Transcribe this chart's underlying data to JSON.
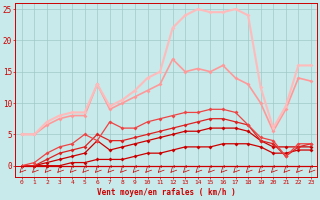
{
  "background_color": "#c8eaea",
  "grid_color": "#a0c8c8",
  "xlabel": "Vent moyen/en rafales ( km/h )",
  "xlabel_color": "#cc0000",
  "tick_color": "#cc0000",
  "yticks": [
    0,
    5,
    10,
    15,
    20,
    25
  ],
  "xticks": [
    0,
    1,
    2,
    3,
    4,
    5,
    6,
    7,
    8,
    9,
    10,
    11,
    12,
    13,
    14,
    15,
    16,
    17,
    18,
    19,
    20,
    21,
    22,
    23
  ],
  "lines": [
    {
      "y": [
        0,
        0,
        0,
        0,
        0,
        0,
        0,
        0,
        0,
        0,
        0,
        0,
        0,
        0,
        0,
        0,
        0,
        0,
        0,
        0,
        0,
        0,
        0,
        0
      ],
      "color": "#cc0000",
      "lw": 0.9
    },
    {
      "y": [
        0,
        0,
        0,
        0,
        0.5,
        0.5,
        1,
        1,
        1,
        1.5,
        2,
        2,
        2.5,
        3,
        3,
        3,
        3.5,
        3.5,
        3.5,
        3,
        2,
        2,
        2.5,
        2.5
      ],
      "color": "#cc0000",
      "lw": 0.9
    },
    {
      "y": [
        0,
        0,
        0.5,
        1,
        1.5,
        2,
        4,
        2.5,
        3,
        3.5,
        4,
        4.5,
        5,
        5.5,
        5.5,
        6,
        6,
        6,
        5.5,
        4,
        3,
        3,
        3,
        3
      ],
      "color": "#cc0000",
      "lw": 0.9
    },
    {
      "y": [
        0,
        0,
        1,
        2,
        2.5,
        3,
        5,
        4,
        4,
        4.5,
        5,
        5.5,
        6,
        6.5,
        7,
        7.5,
        7.5,
        7,
        6.5,
        4,
        3.5,
        1.5,
        3,
        3.5
      ],
      "color": "#dd2222",
      "lw": 0.9
    },
    {
      "y": [
        0,
        0.5,
        2,
        3,
        3.5,
        5,
        4,
        7,
        6,
        6,
        7,
        7.5,
        8,
        8.5,
        8.5,
        9,
        9,
        8.5,
        6.5,
        4.5,
        4,
        1.5,
        3.5,
        3.5
      ],
      "color": "#ee4444",
      "lw": 0.9
    },
    {
      "y": [
        5,
        5,
        6.5,
        7.5,
        8,
        8,
        13,
        9,
        10,
        11,
        12,
        13,
        17,
        15,
        15.5,
        15,
        16,
        14,
        13,
        10,
        5.5,
        9,
        14,
        13.5
      ],
      "color": "#ff9999",
      "lw": 1.2
    },
    {
      "y": [
        5,
        5,
        7,
        8,
        8.5,
        8.5,
        13,
        9.5,
        10.5,
        12,
        14,
        15,
        22,
        24,
        25,
        24.5,
        24.5,
        25,
        24,
        12.5,
        6,
        9.5,
        16,
        16
      ],
      "color": "#ffbbbb",
      "lw": 1.5
    }
  ]
}
